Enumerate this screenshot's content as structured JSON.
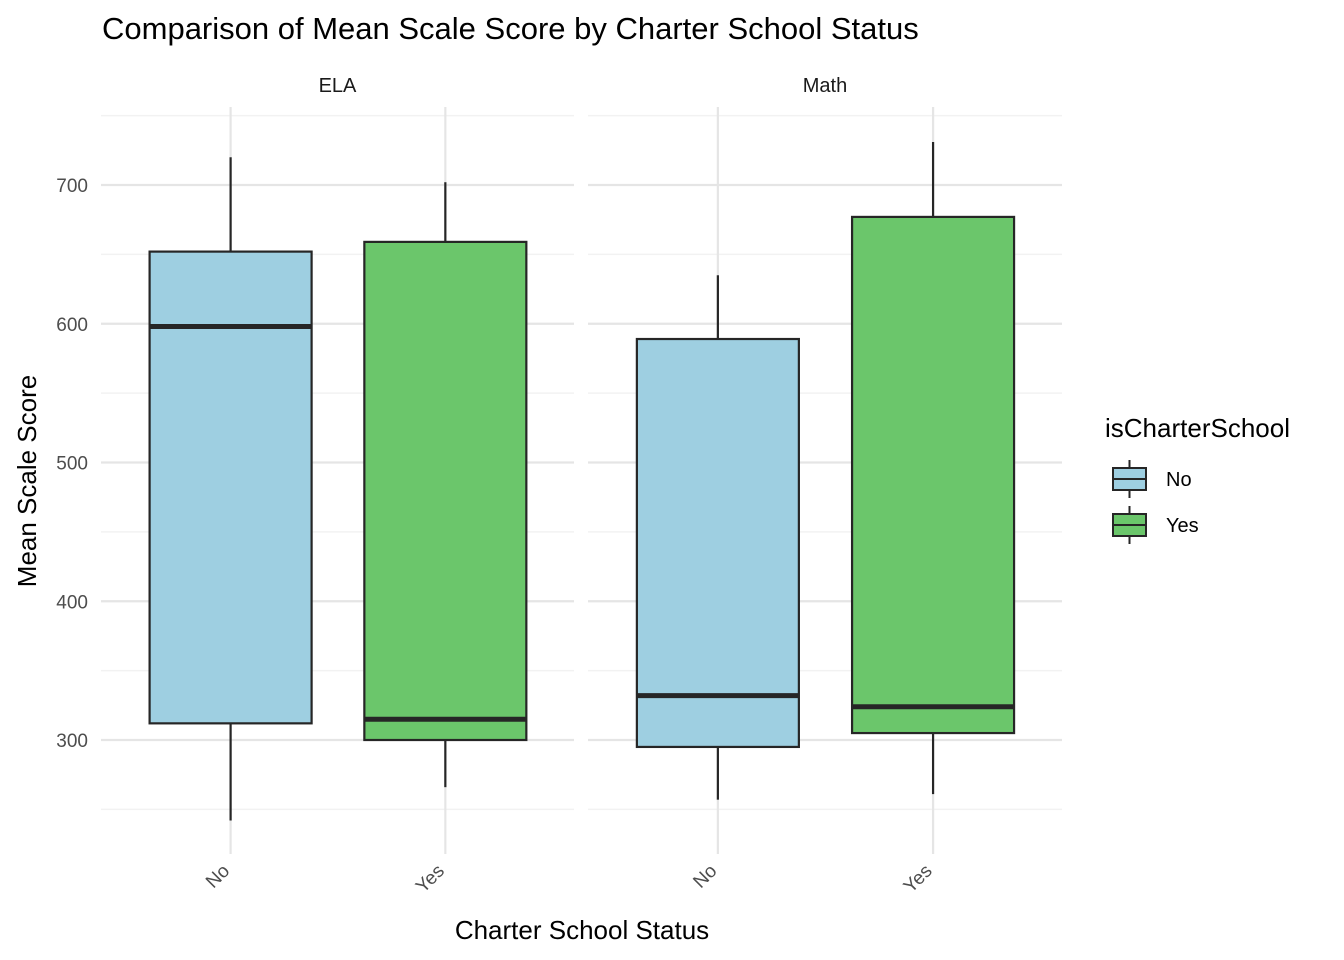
{
  "chart_data": {
    "type": "boxplot",
    "title": "Comparison of Mean Scale Score by Charter School Status",
    "xlabel": "Charter School Status",
    "ylabel": "Mean Scale Score",
    "categories": [
      "No",
      "Yes"
    ],
    "ylim": [
      225,
      760
    ],
    "yticks": [
      300,
      400,
      500,
      600,
      700
    ],
    "grid": true,
    "legend": {
      "title": "isCharterSchool",
      "position": "right",
      "entries": [
        {
          "label": "No",
          "color": "#9ECFE1"
        },
        {
          "label": "Yes",
          "color": "#6BC66B"
        }
      ]
    },
    "facets": [
      {
        "label": "ELA",
        "boxes": [
          {
            "category": "No",
            "min": 242,
            "q1": 312,
            "median": 598,
            "q3": 652,
            "max": 720
          },
          {
            "category": "Yes",
            "min": 266,
            "q1": 300,
            "median": 315,
            "q3": 659,
            "max": 702
          }
        ]
      },
      {
        "label": "Math",
        "boxes": [
          {
            "category": "No",
            "min": 257,
            "q1": 295,
            "median": 332,
            "q3": 589,
            "max": 635
          },
          {
            "category": "Yes",
            "min": 261,
            "q1": 305,
            "median": 324,
            "q3": 677,
            "max": 731
          }
        ]
      }
    ]
  },
  "colors": {
    "no_fill": "#9ECFE1",
    "yes_fill": "#6BC66B",
    "outline": "#262626",
    "grid_major": "#E5E5E5",
    "grid_minor": "#F2F2F2",
    "text": "#000000",
    "tick_text": "#4D4D4D"
  }
}
